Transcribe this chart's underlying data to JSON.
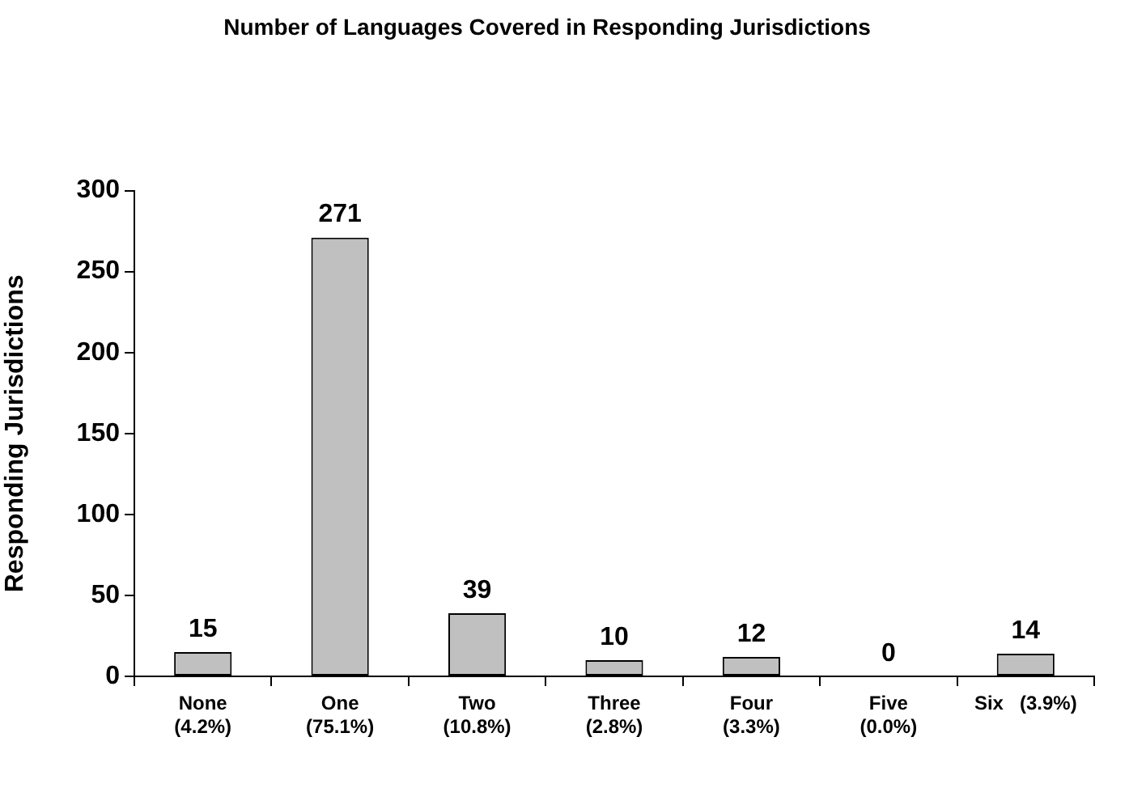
{
  "chart_data": {
    "type": "bar",
    "title": "Number of Languages Covered in Responding Jurisdictions",
    "ylabel": "Responding Jurisdictions",
    "categories": [
      "None\n(4.2%)",
      "One\n(75.1%)",
      "Two\n(10.8%)",
      "Three\n(2.8%)",
      "Four\n(3.3%)",
      "Five\n(0.0%)",
      "Six   (3.9%)"
    ],
    "values": [
      15,
      271,
      39,
      10,
      12,
      0,
      14
    ],
    "color": "#c0c0c0",
    "ylim": [
      0,
      300
    ],
    "yticks": [
      0,
      50,
      100,
      150,
      200,
      250,
      300
    ],
    "data_labels": true
  }
}
